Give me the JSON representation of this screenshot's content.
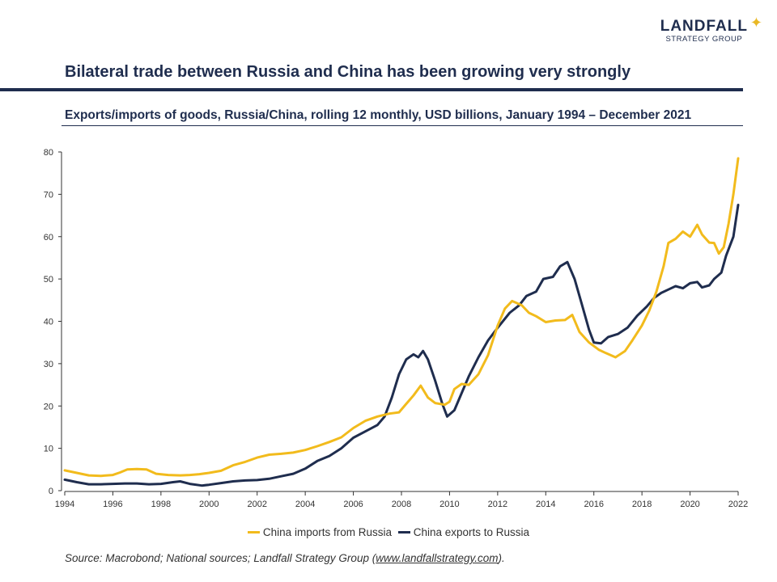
{
  "logo": {
    "name": "LANDFALL",
    "sub": "STRATEGY GROUP"
  },
  "title": "Bilateral trade between Russia and China has been growing very strongly",
  "subtitle": "Exports/imports of goods, Russia/China, rolling 12 monthly, USD billions, January 1994 – December 2021",
  "source": {
    "prefix": "Source: Macrobond; National sources; Landfall Strategy Group (",
    "link": "www.landfallstrategy.com",
    "suffix": ")."
  },
  "colors": {
    "imports": "#F2BB1C",
    "exports": "#1F2D4E",
    "axis": "#333333"
  },
  "chart_data": {
    "type": "line",
    "x_range": [
      1994,
      2022
    ],
    "ylim": [
      0,
      80
    ],
    "y_ticks": [
      0,
      10,
      20,
      30,
      40,
      50,
      60,
      70,
      80
    ],
    "x_ticks": [
      1994,
      1996,
      1998,
      2000,
      2002,
      2004,
      2006,
      2008,
      2010,
      2012,
      2014,
      2016,
      2018,
      2020,
      2022
    ],
    "grid": false,
    "legend_position": "bottom",
    "series": [
      {
        "name": "China imports from Russia",
        "color": "#F2BB1C",
        "points": [
          [
            1994.0,
            4.8
          ],
          [
            1994.5,
            4.2
          ],
          [
            1995.0,
            3.6
          ],
          [
            1995.5,
            3.5
          ],
          [
            1996.0,
            3.7
          ],
          [
            1996.3,
            4.3
          ],
          [
            1996.6,
            5.0
          ],
          [
            1997.0,
            5.1
          ],
          [
            1997.4,
            5.0
          ],
          [
            1997.8,
            4.0
          ],
          [
            1998.3,
            3.7
          ],
          [
            1998.8,
            3.6
          ],
          [
            1999.2,
            3.7
          ],
          [
            1999.6,
            3.9
          ],
          [
            2000.0,
            4.2
          ],
          [
            2000.5,
            4.7
          ],
          [
            2001.0,
            6.0
          ],
          [
            2001.5,
            6.8
          ],
          [
            2002.0,
            7.8
          ],
          [
            2002.5,
            8.5
          ],
          [
            2003.0,
            8.7
          ],
          [
            2003.5,
            9.0
          ],
          [
            2004.0,
            9.6
          ],
          [
            2004.5,
            10.5
          ],
          [
            2005.0,
            11.5
          ],
          [
            2005.5,
            12.6
          ],
          [
            2006.0,
            14.8
          ],
          [
            2006.5,
            16.5
          ],
          [
            2007.0,
            17.5
          ],
          [
            2007.5,
            18.2
          ],
          [
            2007.9,
            18.5
          ],
          [
            2008.2,
            20.5
          ],
          [
            2008.5,
            22.5
          ],
          [
            2008.8,
            24.8
          ],
          [
            2009.1,
            22.0
          ],
          [
            2009.4,
            20.7
          ],
          [
            2009.8,
            20.3
          ],
          [
            2010.0,
            21.0
          ],
          [
            2010.2,
            24.0
          ],
          [
            2010.5,
            25.2
          ],
          [
            2010.8,
            25.0
          ],
          [
            2011.2,
            27.5
          ],
          [
            2011.6,
            32.0
          ],
          [
            2012.0,
            39.0
          ],
          [
            2012.3,
            43.0
          ],
          [
            2012.6,
            44.8
          ],
          [
            2013.0,
            43.8
          ],
          [
            2013.3,
            42.0
          ],
          [
            2013.6,
            41.2
          ],
          [
            2014.0,
            39.8
          ],
          [
            2014.4,
            40.2
          ],
          [
            2014.8,
            40.3
          ],
          [
            2015.1,
            41.5
          ],
          [
            2015.4,
            37.5
          ],
          [
            2015.8,
            35.0
          ],
          [
            2016.2,
            33.3
          ],
          [
            2016.5,
            32.5
          ],
          [
            2016.9,
            31.5
          ],
          [
            2017.3,
            33.0
          ],
          [
            2017.6,
            35.5
          ],
          [
            2018.0,
            39.0
          ],
          [
            2018.3,
            42.5
          ],
          [
            2018.6,
            47.0
          ],
          [
            2018.9,
            53.0
          ],
          [
            2019.1,
            58.5
          ],
          [
            2019.4,
            59.5
          ],
          [
            2019.7,
            61.2
          ],
          [
            2020.0,
            60.0
          ],
          [
            2020.3,
            62.8
          ],
          [
            2020.5,
            60.5
          ],
          [
            2020.8,
            58.6
          ],
          [
            2021.0,
            58.5
          ],
          [
            2021.2,
            56.0
          ],
          [
            2021.4,
            57.5
          ],
          [
            2021.6,
            63.0
          ],
          [
            2021.8,
            70.0
          ],
          [
            2022.0,
            78.5
          ]
        ]
      },
      {
        "name": "China exports to Russia",
        "color": "#1F2D4E",
        "points": [
          [
            1994.0,
            2.6
          ],
          [
            1994.5,
            2.0
          ],
          [
            1995.0,
            1.5
          ],
          [
            1995.5,
            1.5
          ],
          [
            1996.0,
            1.6
          ],
          [
            1996.5,
            1.7
          ],
          [
            1997.0,
            1.7
          ],
          [
            1997.5,
            1.5
          ],
          [
            1998.0,
            1.6
          ],
          [
            1998.5,
            2.0
          ],
          [
            1998.8,
            2.2
          ],
          [
            1999.2,
            1.6
          ],
          [
            1999.7,
            1.2
          ],
          [
            2000.0,
            1.4
          ],
          [
            2000.5,
            1.8
          ],
          [
            2001.0,
            2.2
          ],
          [
            2001.5,
            2.4
          ],
          [
            2002.0,
            2.5
          ],
          [
            2002.5,
            2.8
          ],
          [
            2003.0,
            3.4
          ],
          [
            2003.5,
            4.0
          ],
          [
            2004.0,
            5.2
          ],
          [
            2004.5,
            7.0
          ],
          [
            2005.0,
            8.2
          ],
          [
            2005.5,
            10.0
          ],
          [
            2006.0,
            12.5
          ],
          [
            2006.5,
            14.0
          ],
          [
            2007.0,
            15.5
          ],
          [
            2007.3,
            17.5
          ],
          [
            2007.6,
            22.0
          ],
          [
            2007.9,
            27.5
          ],
          [
            2008.2,
            31.0
          ],
          [
            2008.5,
            32.2
          ],
          [
            2008.7,
            31.5
          ],
          [
            2008.9,
            33.0
          ],
          [
            2009.1,
            31.0
          ],
          [
            2009.4,
            26.0
          ],
          [
            2009.7,
            20.5
          ],
          [
            2009.9,
            17.5
          ],
          [
            2010.2,
            19.0
          ],
          [
            2010.5,
            23.0
          ],
          [
            2010.8,
            27.0
          ],
          [
            2011.2,
            31.5
          ],
          [
            2011.6,
            35.5
          ],
          [
            2012.0,
            38.5
          ],
          [
            2012.5,
            42.0
          ],
          [
            2012.9,
            43.8
          ],
          [
            2013.2,
            46.0
          ],
          [
            2013.6,
            47.0
          ],
          [
            2013.9,
            50.0
          ],
          [
            2014.3,
            50.5
          ],
          [
            2014.6,
            53.0
          ],
          [
            2014.9,
            54.0
          ],
          [
            2015.2,
            50.0
          ],
          [
            2015.5,
            44.0
          ],
          [
            2015.8,
            38.0
          ],
          [
            2016.0,
            35.0
          ],
          [
            2016.3,
            34.8
          ],
          [
            2016.6,
            36.3
          ],
          [
            2017.0,
            37.0
          ],
          [
            2017.4,
            38.5
          ],
          [
            2017.8,
            41.3
          ],
          [
            2018.2,
            43.5
          ],
          [
            2018.5,
            45.5
          ],
          [
            2018.8,
            46.7
          ],
          [
            2019.1,
            47.5
          ],
          [
            2019.4,
            48.3
          ],
          [
            2019.7,
            47.8
          ],
          [
            2020.0,
            49.0
          ],
          [
            2020.3,
            49.3
          ],
          [
            2020.5,
            48.0
          ],
          [
            2020.8,
            48.5
          ],
          [
            2021.0,
            50.0
          ],
          [
            2021.3,
            51.5
          ],
          [
            2021.5,
            55.5
          ],
          [
            2021.8,
            60.0
          ],
          [
            2022.0,
            67.5
          ]
        ]
      }
    ]
  }
}
